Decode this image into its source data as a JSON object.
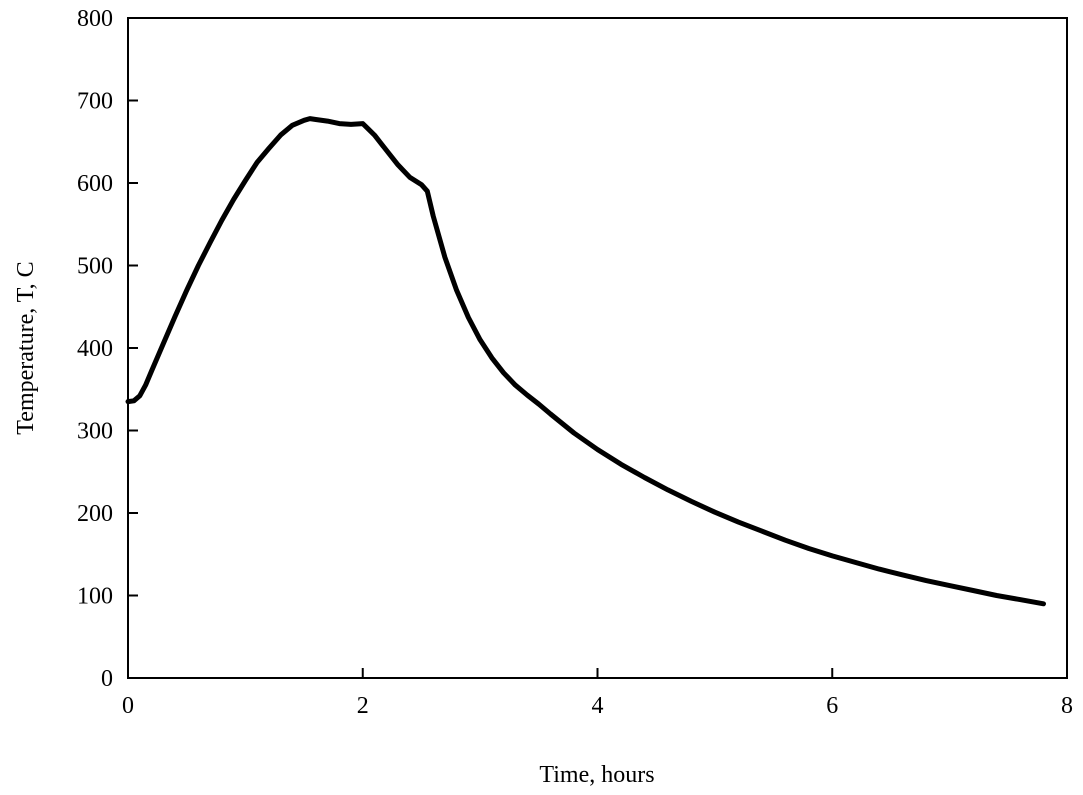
{
  "chart_data": {
    "type": "line",
    "title": "",
    "xlabel": "Time, hours",
    "ylabel": "Temperature, T, C",
    "xlim": [
      0,
      8
    ],
    "ylim": [
      0,
      800
    ],
    "x_ticks": [
      0,
      2,
      4,
      6,
      8
    ],
    "y_ticks": [
      0,
      100,
      200,
      300,
      400,
      500,
      600,
      700,
      800
    ],
    "x_tick_labels": [
      "0",
      "2",
      "4",
      "6",
      "8"
    ],
    "y_tick_labels": [
      "0",
      "100",
      "200",
      "300",
      "400",
      "500",
      "600",
      "700",
      "800"
    ],
    "grid": false,
    "legend": "none",
    "line_color": "#000000",
    "series": [
      {
        "x": [
          0.0,
          0.05,
          0.1,
          0.15,
          0.2,
          0.3,
          0.4,
          0.5,
          0.6,
          0.7,
          0.8,
          0.9,
          1.0,
          1.1,
          1.2,
          1.3,
          1.4,
          1.5,
          1.55,
          1.6,
          1.7,
          1.8,
          1.9,
          2.0,
          2.1,
          2.2,
          2.3,
          2.4,
          2.5,
          2.55,
          2.6,
          2.7,
          2.8,
          2.9,
          3.0,
          3.1,
          3.2,
          3.3,
          3.4,
          3.5,
          3.6,
          3.8,
          4.0,
          4.2,
          4.4,
          4.6,
          4.8,
          5.0,
          5.2,
          5.4,
          5.6,
          5.8,
          6.0,
          6.2,
          6.4,
          6.6,
          6.8,
          7.0,
          7.2,
          7.4,
          7.6,
          7.8
        ],
        "y": [
          335,
          336,
          342,
          355,
          372,
          405,
          438,
          470,
          500,
          528,
          555,
          580,
          603,
          625,
          642,
          658,
          670,
          676,
          678,
          677,
          675,
          672,
          671,
          672,
          658,
          640,
          622,
          607,
          598,
          590,
          560,
          510,
          470,
          437,
          410,
          388,
          370,
          355,
          343,
          332,
          320,
          297,
          277,
          259,
          243,
          228,
          214,
          201,
          189,
          178,
          167,
          157,
          148,
          140,
          132,
          125,
          118,
          112,
          106,
          100,
          95,
          90
        ]
      }
    ]
  }
}
